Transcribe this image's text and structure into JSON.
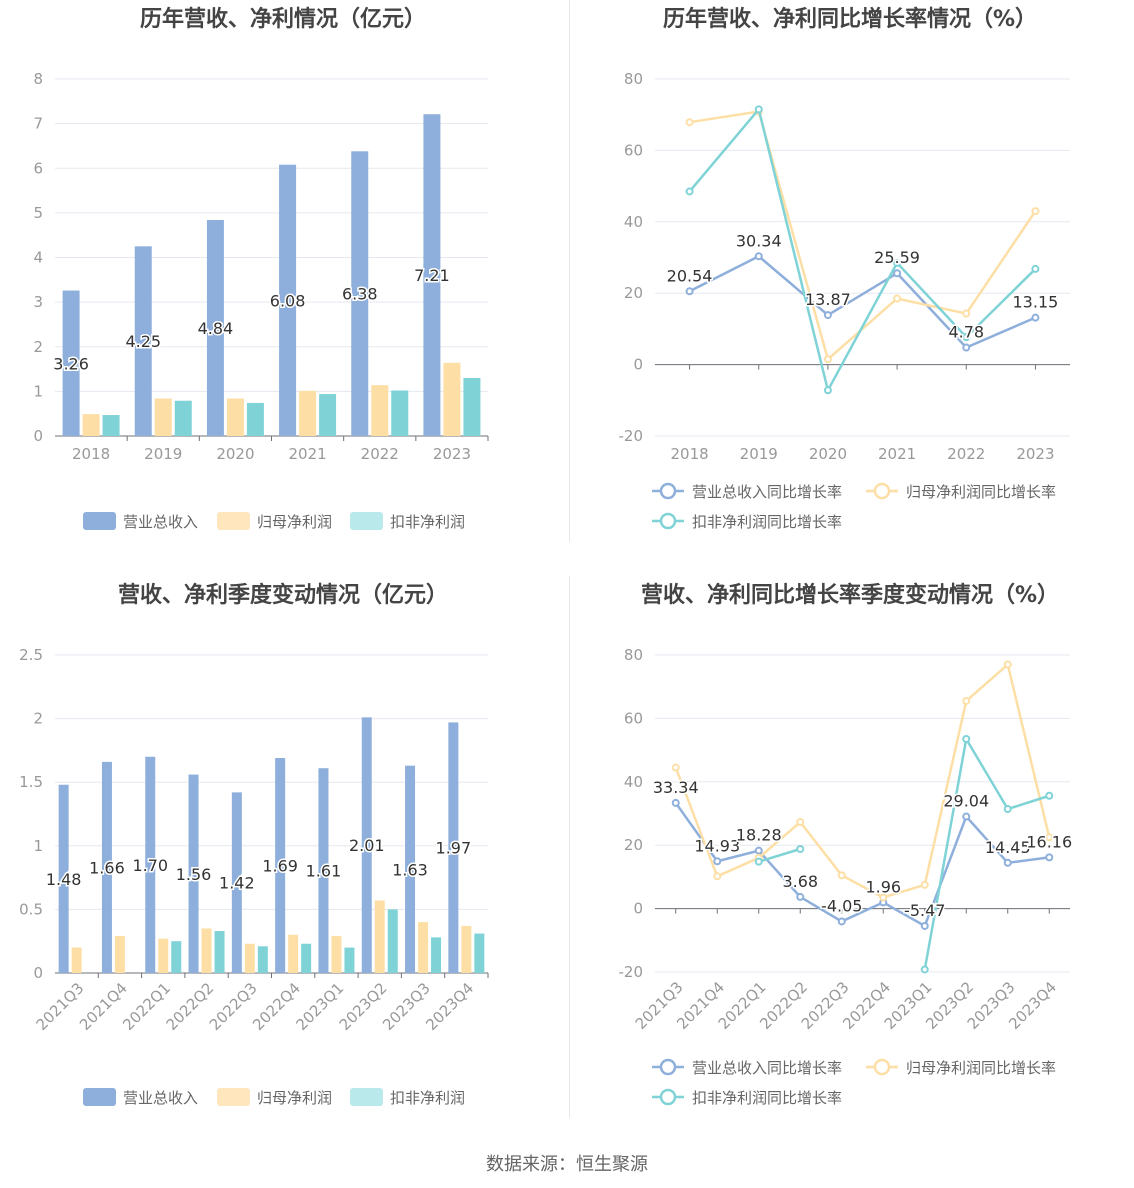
{
  "colors": {
    "revenue": "#8eafdb",
    "net_profit": "#fddfa6",
    "deducted_profit": "#7fd3d6",
    "axis_text": "#999999",
    "grid": "#e6e8f0",
    "title": "#444444"
  },
  "source": "数据来源：恒生聚源",
  "chart_data": [
    {
      "id": "annual-bars",
      "type": "bar",
      "title": "历年营收、净利情况（亿元）",
      "categories": [
        "2018",
        "2019",
        "2020",
        "2021",
        "2022",
        "2023"
      ],
      "ylim": [
        0,
        8
      ],
      "yticks": [
        0,
        1,
        2,
        3,
        4,
        5,
        6,
        7,
        8
      ],
      "grid": true,
      "legend": "bottom",
      "label_series": 0,
      "series": [
        {
          "name": "营业总收入",
          "values": [
            3.26,
            4.25,
            4.84,
            6.08,
            6.38,
            7.21
          ]
        },
        {
          "name": "归母净利润",
          "values": [
            0.49,
            0.84,
            0.84,
            1.01,
            1.14,
            1.64
          ]
        },
        {
          "name": "扣非净利润",
          "values": [
            0.47,
            0.79,
            0.74,
            0.94,
            1.02,
            1.3
          ]
        }
      ]
    },
    {
      "id": "annual-growth",
      "type": "line",
      "title": "历年营收、净利同比增长率情况（%）",
      "categories": [
        "2018",
        "2019",
        "2020",
        "2021",
        "2022",
        "2023"
      ],
      "ylim": [
        -20,
        80
      ],
      "yticks": [
        -20,
        0,
        20,
        40,
        60,
        80
      ],
      "grid": true,
      "legend": "bottom",
      "label_series": 0,
      "series": [
        {
          "name": "营业总收入同比增长率",
          "values": [
            20.54,
            30.34,
            13.87,
            25.59,
            4.78,
            13.15
          ]
        },
        {
          "name": "归母净利润同比增长率",
          "values": [
            67.9,
            70.9,
            1.5,
            18.5,
            14.3,
            43.0
          ]
        },
        {
          "name": "扣非净利润同比增长率",
          "values": [
            48.5,
            71.5,
            -7.2,
            28.5,
            7.7,
            26.8
          ]
        }
      ]
    },
    {
      "id": "quarterly-bars",
      "type": "bar",
      "title": "营收、净利季度变动情况（亿元）",
      "categories": [
        "2021Q3",
        "2021Q4",
        "2022Q1",
        "2022Q2",
        "2022Q3",
        "2022Q4",
        "2023Q1",
        "2023Q2",
        "2023Q3",
        "2023Q4"
      ],
      "ylim": [
        0,
        2.5
      ],
      "yticks": [
        0,
        0.5,
        1,
        1.5,
        2,
        2.5
      ],
      "grid": true,
      "legend": "bottom",
      "label_series": 0,
      "label_format": 2,
      "series": [
        {
          "name": "营业总收入",
          "values": [
            1.48,
            1.66,
            1.7,
            1.56,
            1.42,
            1.69,
            1.61,
            2.01,
            1.63,
            1.97
          ]
        },
        {
          "name": "归母净利润",
          "values": [
            0.2,
            0.29,
            0.27,
            0.35,
            0.23,
            0.3,
            0.29,
            0.57,
            0.4,
            0.37
          ]
        },
        {
          "name": "扣非净利润",
          "values": [
            null,
            null,
            0.25,
            0.33,
            0.21,
            0.23,
            0.2,
            0.5,
            0.28,
            0.31
          ]
        }
      ]
    },
    {
      "id": "quarterly-growth",
      "type": "line",
      "title": "营收、净利同比增长率季度变动情况（%）",
      "categories": [
        "2021Q3",
        "2021Q4",
        "2022Q1",
        "2022Q2",
        "2022Q3",
        "2022Q4",
        "2023Q1",
        "2023Q2",
        "2023Q3",
        "2023Q4"
      ],
      "ylim": [
        -20,
        80
      ],
      "yticks": [
        -20,
        0,
        20,
        40,
        60,
        80
      ],
      "grid": true,
      "legend": "bottom",
      "label_series": 0,
      "series": [
        {
          "name": "营业总收入同比增长率",
          "values": [
            33.34,
            14.93,
            18.28,
            3.68,
            -4.05,
            1.96,
            -5.47,
            29.04,
            14.45,
            16.16
          ]
        },
        {
          "name": "归母净利润同比增长率",
          "values": [
            44.5,
            10.2,
            16.0,
            27.3,
            10.5,
            3.5,
            7.5,
            65.5,
            77.0,
            22.5
          ]
        },
        {
          "name": "扣非净利润同比增长率",
          "values": [
            null,
            null,
            14.8,
            18.8,
            null,
            null,
            -19.2,
            53.5,
            31.4,
            35.6
          ]
        }
      ]
    }
  ]
}
